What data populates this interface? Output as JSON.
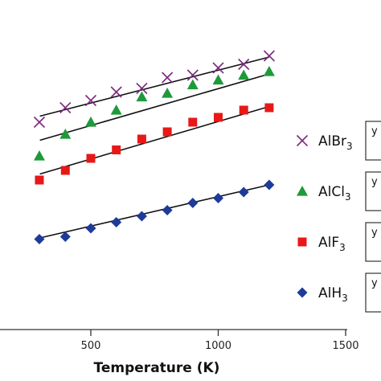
{
  "chart_data": {
    "type": "scatter",
    "xlabel": "Temperature (K)",
    "ylabel": "",
    "title": "",
    "xlim": [
      0,
      1500
    ],
    "xticks": [
      500,
      1000,
      1500
    ],
    "grid": false,
    "legend_position": "right",
    "series": [
      {
        "name": "AlBr",
        "subscript": "3",
        "marker": "x",
        "color": "#7a2a7e",
        "x": [
          298,
          400,
          500,
          600,
          700,
          800,
          900,
          1000,
          1100,
          1200
        ],
        "y": [
          0.86,
          0.92,
          0.95,
          0.985,
          1.0,
          1.045,
          1.055,
          1.085,
          1.1,
          1.135
        ],
        "fit": {
          "x": [
            300,
            1200
          ],
          "y": [
            0.885,
            1.13
          ]
        },
        "equation": "y"
      },
      {
        "name": "AlCl",
        "subscript": "3",
        "marker": "triangle",
        "color": "#1e9a3a",
        "x": [
          298,
          400,
          500,
          600,
          700,
          800,
          900,
          1000,
          1100,
          1200
        ],
        "y": [
          0.72,
          0.81,
          0.86,
          0.91,
          0.965,
          0.98,
          1.015,
          1.035,
          1.055,
          1.07
        ],
        "fit": {
          "x": [
            300,
            1200
          ],
          "y": [
            0.785,
            1.06
          ]
        },
        "equation": "y"
      },
      {
        "name": "AlF",
        "subscript": "3",
        "marker": "square",
        "color": "#e81818",
        "x": [
          298,
          400,
          500,
          600,
          700,
          800,
          900,
          1000,
          1100,
          1200
        ],
        "y": [
          0.62,
          0.66,
          0.71,
          0.745,
          0.79,
          0.82,
          0.86,
          0.88,
          0.91,
          0.92
        ],
        "fit": {
          "x": [
            300,
            1200
          ],
          "y": [
            0.645,
            0.925
          ]
        },
        "equation": "y"
      },
      {
        "name": "AlH",
        "subscript": "3",
        "marker": "diamond",
        "color": "#1f3b99",
        "x": [
          298,
          400,
          500,
          600,
          700,
          800,
          900,
          1000,
          1100,
          1200
        ],
        "y": [
          0.375,
          0.385,
          0.42,
          0.445,
          0.47,
          0.495,
          0.525,
          0.545,
          0.57,
          0.6
        ],
        "fit": {
          "x": [
            300,
            1200
          ],
          "y": [
            0.38,
            0.6
          ]
        },
        "equation": "y"
      }
    ]
  }
}
